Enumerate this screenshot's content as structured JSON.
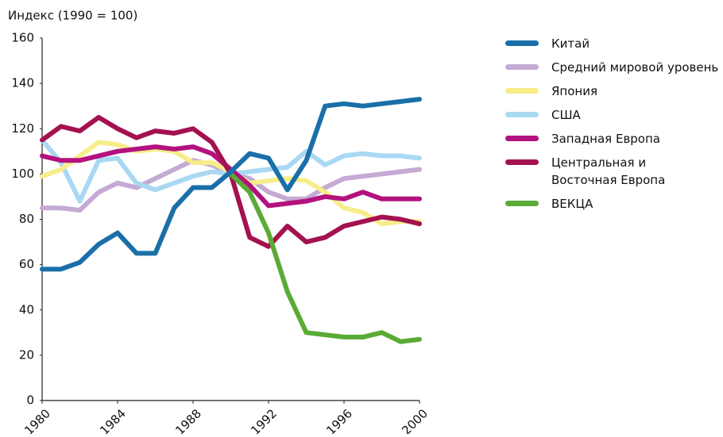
{
  "chart_data": {
    "type": "line",
    "ylabel": "Индекс (1990 = 100)",
    "x": [
      1980,
      1981,
      1982,
      1983,
      1984,
      1985,
      1986,
      1987,
      1988,
      1989,
      1990,
      1991,
      1992,
      1993,
      1994,
      1995,
      1996,
      1997,
      1998,
      1999,
      2000
    ],
    "xlim": [
      1980,
      2000
    ],
    "xticks": [
      1980,
      1984,
      1988,
      1992,
      1996,
      2000
    ],
    "ylim": [
      0,
      160
    ],
    "yticks": [
      0,
      20,
      40,
      60,
      80,
      100,
      120,
      140,
      160
    ],
    "grid": false,
    "legend": "right",
    "series": [
      {
        "name": "Средний мировой уровень",
        "color": "#c4aad4",
        "values": [
          85,
          85,
          84,
          92,
          96,
          94,
          98,
          102,
          106,
          104,
          100,
          98,
          92,
          89,
          89,
          94,
          98,
          99,
          100,
          101,
          102
        ]
      },
      {
        "name": "США",
        "color": "#a9d8f3",
        "values": [
          115,
          105,
          88,
          106,
          107,
          96,
          93,
          96,
          99,
          101,
          100,
          101,
          102,
          103,
          110,
          104,
          108,
          109,
          108,
          108,
          107
        ]
      },
      {
        "name": "Япония",
        "color": "#f7ed8a",
        "values": [
          99,
          102,
          108,
          114,
          113,
          110,
          111,
          110,
          105,
          105,
          101,
          96,
          97,
          98,
          97,
          92,
          85,
          83,
          78,
          79,
          79
        ]
      },
      {
        "name": "Западная Европа",
        "color": "#b3127e",
        "values": [
          108,
          106,
          106,
          108,
          110,
          111,
          112,
          111,
          112,
          109,
          102,
          95,
          86,
          87,
          88,
          90,
          89,
          92,
          89,
          89,
          89
        ]
      },
      {
        "name": "Центральная и Восточная Европа",
        "color": "#a4114f",
        "values": [
          115,
          121,
          119,
          125,
          120,
          116,
          119,
          118,
          120,
          114,
          100,
          72,
          68,
          77,
          70,
          72,
          77,
          79,
          81,
          80,
          78
        ]
      },
      {
        "name": "ВЕКЦА",
        "color": "#5aab35",
        "values": [
          null,
          null,
          null,
          null,
          null,
          null,
          null,
          null,
          null,
          null,
          100,
          92,
          74,
          48,
          30,
          29,
          28,
          28,
          30,
          26,
          27
        ]
      },
      {
        "name": "Китай",
        "color": "#1a6fa8",
        "values": [
          58,
          58,
          61,
          69,
          74,
          65,
          65,
          85,
          94,
          94,
          101,
          109,
          107,
          93,
          106,
          130,
          131,
          130,
          131,
          132,
          133
        ]
      }
    ],
    "legend_order": [
      "Китай",
      "Средний мировой уровень",
      "Япония",
      "США",
      "Западная Европа",
      "Центральная и Восточная Европа",
      "ВЕКЦА"
    ]
  }
}
